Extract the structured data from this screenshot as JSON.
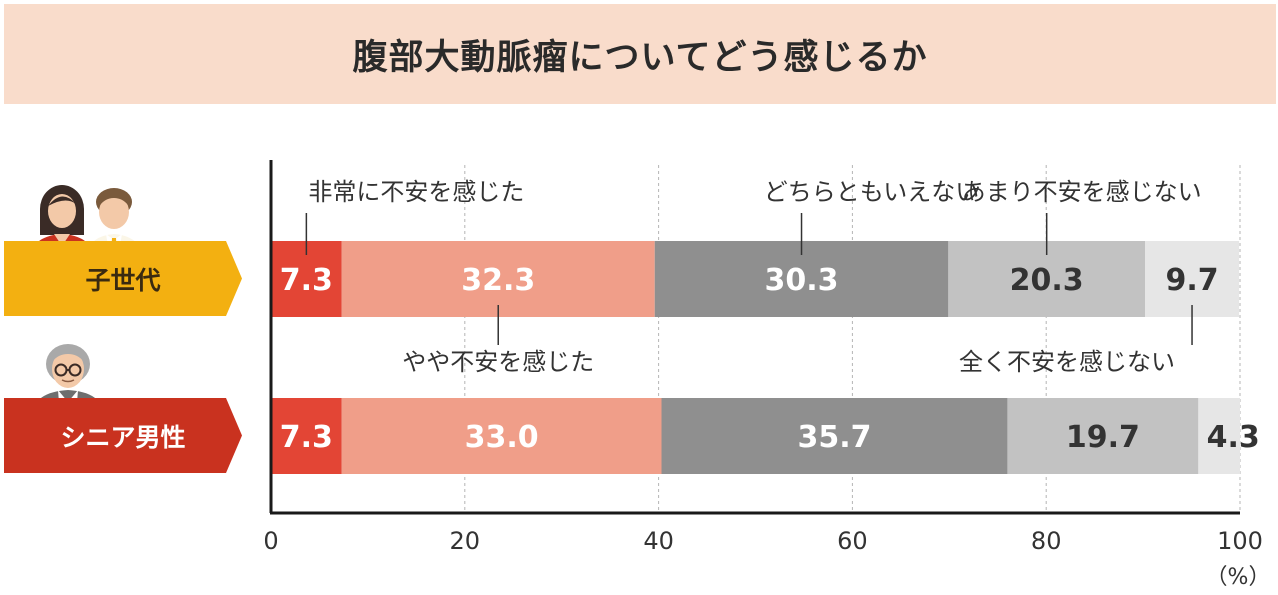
{
  "title": "腹部大動脈瘤についてどう感じるか",
  "colors": {
    "title_bg": "#f9dccb",
    "row1_label_bg": "#f3b011",
    "row2_label_bg": "#c9321f",
    "segments": [
      "#e34535",
      "#f09e89",
      "#8f8f8f",
      "#c2c2c2",
      "#e6e6e6"
    ]
  },
  "rows": [
    {
      "label": "子世代",
      "icon": "parent-child-couple-icon"
    },
    {
      "label": "シニア男性",
      "icon": "senior-man-icon"
    }
  ],
  "chart_data": {
    "type": "bar",
    "orientation": "horizontal",
    "stacked": true,
    "categories": [
      "子世代",
      "シニア男性"
    ],
    "series": [
      {
        "name": "非常に不安を感じた",
        "values": [
          7.3,
          7.3
        ]
      },
      {
        "name": "やや不安を感じた",
        "values": [
          32.3,
          33.0
        ]
      },
      {
        "name": "どちらともいえない",
        "values": [
          30.3,
          35.7
        ]
      },
      {
        "name": "あまり不安を感じない",
        "values": [
          20.3,
          19.7
        ]
      },
      {
        "name": "全く不安を感じない",
        "values": [
          9.7,
          4.3
        ]
      }
    ],
    "x_ticks": [
      "0",
      "20",
      "40",
      "60",
      "80",
      "100"
    ],
    "xlim": [
      0,
      100
    ],
    "unit": "（%）",
    "grid": true
  }
}
